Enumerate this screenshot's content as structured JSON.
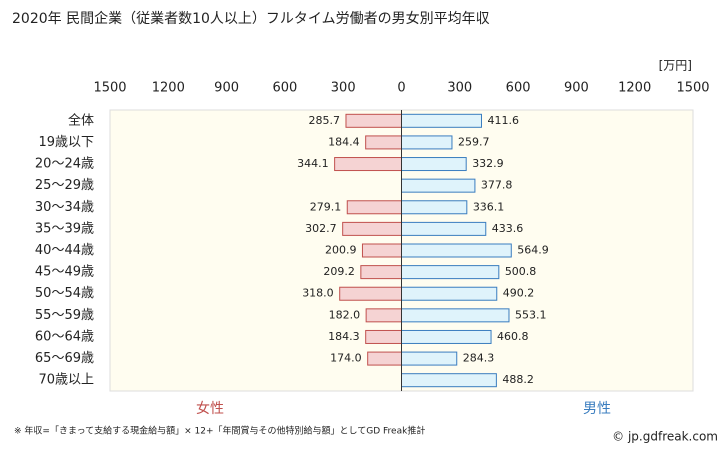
{
  "chart_data": {
    "type": "butterfly",
    "title": "2020年 民間企業（従業者数10人以上）フルタイム労働者の男女別平均年収",
    "unit_label": "[万円]",
    "categories": [
      "全体",
      "19歳以下",
      "20～24歳",
      "25～29歳",
      "30～34歳",
      "35～39歳",
      "40～44歳",
      "45～49歳",
      "50～54歳",
      "55～59歳",
      "60～64歳",
      "65～69歳",
      "70歳以上"
    ],
    "series": [
      {
        "name": "女性",
        "side": "left",
        "color": "#f5d3d3",
        "edge": "#c0504d",
        "label_color": "#c0504d",
        "values": [
          285.7,
          184.4,
          344.1,
          null,
          279.1,
          302.7,
          200.9,
          209.2,
          318.0,
          182.0,
          184.3,
          174.0,
          null
        ],
        "value_labels": [
          "285.7",
          "184.4",
          "344.1",
          null,
          "279.1",
          "302.7",
          "200.9",
          "209.2",
          "318.0",
          "182.0",
          "184.3",
          "174.0",
          null
        ]
      },
      {
        "name": "男性",
        "side": "right",
        "color": "#dff3fb",
        "edge": "#3a7dbf",
        "label_color": "#3a7dbf",
        "values": [
          411.6,
          259.7,
          332.9,
          377.8,
          336.1,
          433.6,
          564.9,
          500.8,
          490.2,
          553.1,
          460.8,
          284.3,
          488.2
        ]
      }
    ],
    "xlim": [
      -1500,
      1500
    ],
    "xticks": [
      {
        "value": -1500,
        "label": "1500"
      },
      {
        "value": -1200,
        "label": "1200"
      },
      {
        "value": -900,
        "label": "900"
      },
      {
        "value": -600,
        "label": "600"
      },
      {
        "value": -300,
        "label": "300"
      },
      0,
      300,
      600,
      900,
      1200,
      1500
    ],
    "grid": false,
    "footnote": "※ 年収=「きまって支給する現金給与額」× 12+「年間賞与その他特別給与額」としてGD Freak推計",
    "credit": "© jp.gdfreak.com"
  }
}
